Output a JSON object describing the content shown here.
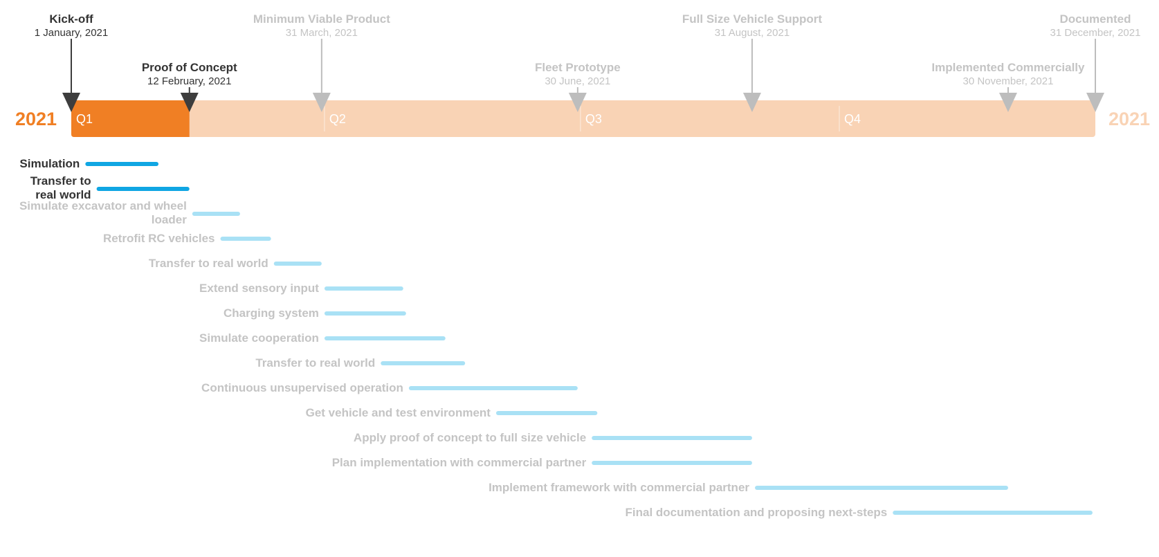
{
  "colors": {
    "accent": "#f07f24",
    "timeline_bg": "#f9d3b5",
    "active_marker": "#3d3d3d",
    "inactive_marker": "#bdbdbd",
    "active_text": "#333333",
    "inactive_text": "#c4c4c4",
    "task_active": "#10a6e3",
    "task_inactive": "#a9e1f5"
  },
  "chart_data": {
    "type": "gantt",
    "year_start_label": "2021",
    "year_end_label": "2021",
    "timeline_start": "2021-01-01",
    "timeline_end": "2021-12-31",
    "progress_end": "2021-02-12",
    "quarters": [
      {
        "label": "Q1",
        "start": "2021-01-01"
      },
      {
        "label": "Q2",
        "start": "2021-04-01"
      },
      {
        "label": "Q3",
        "start": "2021-07-01"
      },
      {
        "label": "Q4",
        "start": "2021-10-01"
      }
    ],
    "milestones": [
      {
        "name": "Kick-off",
        "date_label": "1 January, 2021",
        "date": "2021-01-01",
        "row": "top",
        "active": true
      },
      {
        "name": "Proof of Concept",
        "date_label": "12 February, 2021",
        "date": "2021-02-12",
        "row": "bottom",
        "active": true
      },
      {
        "name": "Minimum Viable Product",
        "date_label": "31 March, 2021",
        "date": "2021-03-31",
        "row": "top",
        "active": false
      },
      {
        "name": "Fleet Prototype",
        "date_label": "30 June, 2021",
        "date": "2021-06-30",
        "row": "bottom",
        "active": false
      },
      {
        "name": "Full Size Vehicle Support",
        "date_label": "31 August, 2021",
        "date": "2021-08-31",
        "row": "top",
        "active": false
      },
      {
        "name": "Implemented Commercially",
        "date_label": "30 November, 2021",
        "date": "2021-11-30",
        "row": "bottom",
        "active": false
      },
      {
        "name": "Documented",
        "date_label": "31 December, 2021",
        "date": "2021-12-31",
        "row": "top",
        "active": false
      }
    ],
    "tasks": [
      {
        "name": [
          "Simulation"
        ],
        "start": "2021-01-06",
        "end": "2021-02-01",
        "active": true
      },
      {
        "name": [
          "Transfer to",
          "real world"
        ],
        "start": "2021-01-10",
        "end": "2021-02-12",
        "active": true
      },
      {
        "name": [
          "Simulate excavator and wheel",
          "loader"
        ],
        "start": "2021-02-13",
        "end": "2021-03-02",
        "active": false
      },
      {
        "name": [
          "Retrofit RC vehicles"
        ],
        "start": "2021-02-23",
        "end": "2021-03-13",
        "active": false
      },
      {
        "name": [
          "Transfer to real world"
        ],
        "start": "2021-03-14",
        "end": "2021-03-31",
        "active": false
      },
      {
        "name": [
          "Extend sensory input"
        ],
        "start": "2021-04-01",
        "end": "2021-04-29",
        "active": false
      },
      {
        "name": [
          "Charging system"
        ],
        "start": "2021-04-01",
        "end": "2021-04-30",
        "active": false
      },
      {
        "name": [
          "Simulate cooperation"
        ],
        "start": "2021-04-01",
        "end": "2021-05-14",
        "active": false
      },
      {
        "name": [
          "Transfer to real world"
        ],
        "start": "2021-04-21",
        "end": "2021-05-21",
        "active": false
      },
      {
        "name": [
          "Continuous unsupervised operation"
        ],
        "start": "2021-05-01",
        "end": "2021-06-30",
        "active": false
      },
      {
        "name": [
          "Get vehicle and test environment"
        ],
        "start": "2021-06-01",
        "end": "2021-07-07",
        "active": false
      },
      {
        "name": [
          "Apply proof of concept to full size vehicle"
        ],
        "start": "2021-07-05",
        "end": "2021-08-31",
        "active": false
      },
      {
        "name": [
          "Plan implementation with commercial partner"
        ],
        "start": "2021-07-05",
        "end": "2021-08-31",
        "active": false
      },
      {
        "name": [
          "Implement framework with commercial partner"
        ],
        "start": "2021-09-01",
        "end": "2021-11-30",
        "active": false
      },
      {
        "name": [
          "Final documentation and proposing next-steps"
        ],
        "start": "2021-10-20",
        "end": "2021-12-30",
        "active": false
      }
    ]
  }
}
